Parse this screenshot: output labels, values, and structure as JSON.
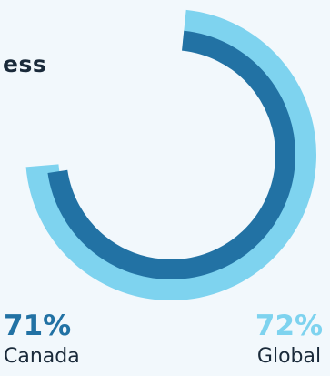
{
  "title_fragment": "ess",
  "colors": {
    "background": "#f2f8fc",
    "global_ring": "#7ed3ef",
    "canada_ring": "#2272a4",
    "text": "#1a2a3a"
  },
  "chart_data": {
    "type": "radial-bar",
    "series": [
      {
        "name": "Canada",
        "value": 71,
        "unit": "%",
        "label": "71%",
        "color": "#2272a4"
      },
      {
        "name": "Global",
        "value": 72,
        "unit": "%",
        "label": "72%",
        "color": "#7ed3ef"
      }
    ],
    "max": 100
  }
}
